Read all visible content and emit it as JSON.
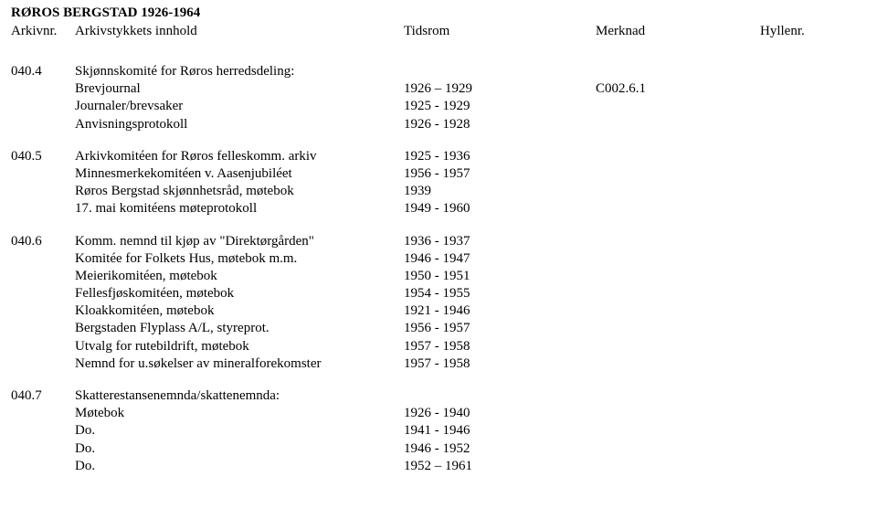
{
  "document": {
    "title": "RØROS BERGSTAD 1926-1964",
    "background_color": "#ffffff",
    "text_color": "#000000",
    "font_family": "Times New Roman",
    "font_size_pt": 11
  },
  "header": {
    "col1": "Arkivnr.",
    "col2": "Arkivstykkets innhold",
    "col3": "Tidsrom",
    "col4": "Merknad",
    "col5": "Hyllenr."
  },
  "entries": [
    {
      "code": "040.4",
      "rows": [
        {
          "desc": "Skjønnskomité for Røros herredsdeling:",
          "time": "",
          "note": ""
        },
        {
          "desc": "Brevjournal",
          "time": "1926 – 1929",
          "note": "C002.6.1"
        },
        {
          "desc": "Journaler/brevsaker",
          "time": "1925 - 1929",
          "note": ""
        },
        {
          "desc": "Anvisningsprotokoll",
          "time": "1926 - 1928",
          "note": ""
        }
      ]
    },
    {
      "code": "040.5",
      "rows": [
        {
          "desc": "Arkivkomitéen for Røros felleskomm. arkiv",
          "time": "1925 - 1936",
          "note": ""
        },
        {
          "desc": "Minnesmerkekomitéen v. Aasenjubiléet",
          "time": "1956 - 1957",
          "note": ""
        },
        {
          "desc": "Røros Bergstad skjønnhetsråd, møtebok",
          "time": "1939",
          "note": ""
        },
        {
          "desc": "17. mai komitéens møteprotokoll",
          "time": "1949 - 1960",
          "note": ""
        }
      ]
    },
    {
      "code": "040.6",
      "rows": [
        {
          "desc": "Komm. nemnd til kjøp av \"Direktørgården\"",
          "time": "1936 - 1937",
          "note": ""
        },
        {
          "desc": "Komitée for Folkets Hus, møtebok m.m.",
          "time": "1946 - 1947",
          "note": ""
        },
        {
          "desc": "Meierikomitéen, møtebok",
          "time": "1950 - 1951",
          "note": ""
        },
        {
          "desc": "Fellesfjøskomitéen, møtebok",
          "time": "1954 - 1955",
          "note": ""
        },
        {
          "desc": "Kloakkomitéen, møtebok",
          "time": "1921 - 1946",
          "note": ""
        },
        {
          "desc": "Bergstaden Flyplass A/L, styreprot.",
          "time": "1956 - 1957",
          "note": ""
        },
        {
          "desc": "Utvalg for rutebildrift, møtebok",
          "time": "1957 - 1958",
          "note": ""
        },
        {
          "desc": "Nemnd for u.søkelser av mineralforekomster",
          "time": "1957 - 1958",
          "note": ""
        }
      ]
    },
    {
      "code": "040.7",
      "rows": [
        {
          "desc": "Skatterestansenemnda/skattenemnda:",
          "time": "",
          "note": ""
        },
        {
          "desc": "Møtebok",
          "time": "1926 - 1940",
          "note": ""
        },
        {
          "desc": "Do.",
          "time": "1941 - 1946",
          "note": ""
        },
        {
          "desc": "Do.",
          "time": "1946 - 1952",
          "note": ""
        },
        {
          "desc": "Do.",
          "time": "1952 – 1961",
          "note": ""
        }
      ]
    }
  ]
}
